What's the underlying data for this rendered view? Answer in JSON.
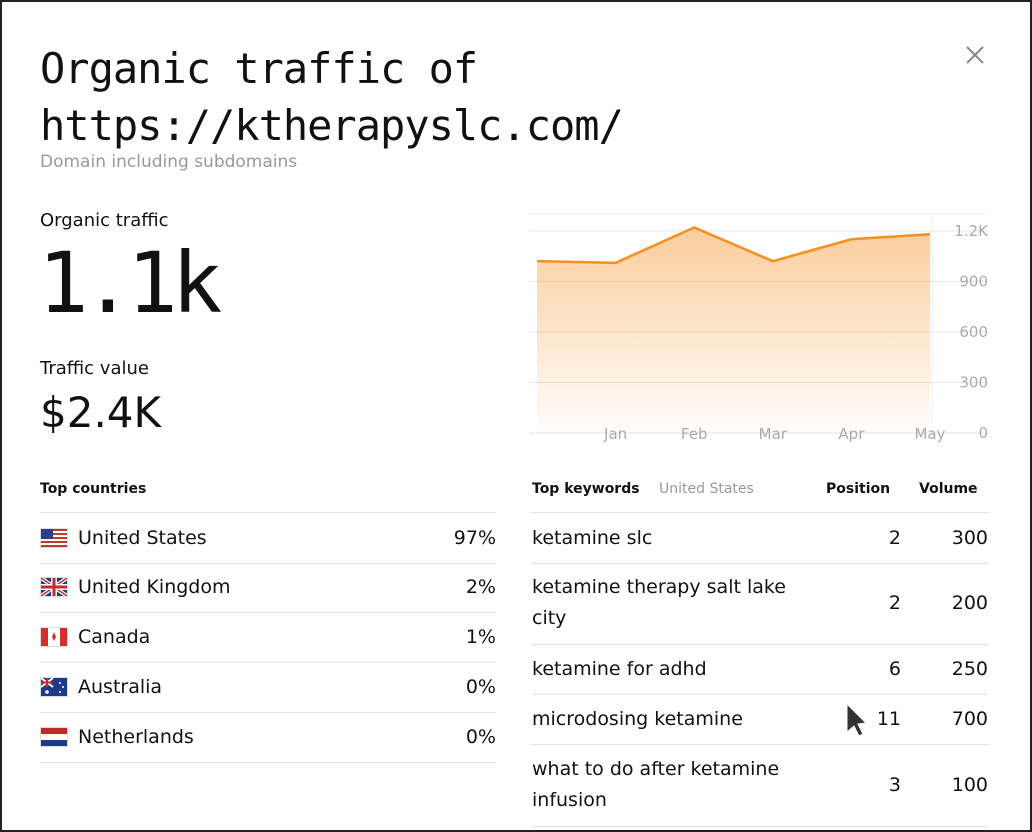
{
  "header": {
    "title": "Organic traffic of https://ktherapyslc.com/",
    "subtitle": "Domain including subdomains"
  },
  "metrics": [
    {
      "label": "Organic traffic",
      "value": "1.1k"
    },
    {
      "label": "Traffic value",
      "value": "$2.4K"
    }
  ],
  "chart_data": {
    "type": "area",
    "categories": [
      null,
      "Jan",
      "Feb",
      "Mar",
      "Apr",
      "May"
    ],
    "series": [
      {
        "color": "#f5901e",
        "values": [
          1020,
          1010,
          1220,
          1020,
          1150,
          1180
        ]
      }
    ],
    "ylim": [
      0,
      1300
    ],
    "yticks": [
      0,
      300,
      600,
      900,
      {
        "value": 1200,
        "label": "1.2K"
      }
    ],
    "grid": true
  },
  "countries": {
    "title": "Top countries",
    "rows": [
      [
        "United States",
        "97%"
      ],
      [
        "United Kingdom",
        "2%"
      ],
      [
        "Canada",
        "1%"
      ],
      [
        "Australia",
        "0%"
      ],
      [
        "Netherlands",
        "0%"
      ]
    ]
  },
  "keywords": {
    "title": "Top keywords",
    "filter": "United States",
    "columns": [
      "Position",
      "Volume"
    ],
    "rows": [
      [
        "ketamine slc",
        2,
        300
      ],
      [
        "ketamine therapy salt lake city",
        2,
        200
      ],
      [
        "ketamine for adhd",
        6,
        250
      ],
      [
        "microdosing ketamine",
        11,
        700
      ],
      [
        "what to do after ketamine infusion",
        3,
        100
      ]
    ]
  }
}
